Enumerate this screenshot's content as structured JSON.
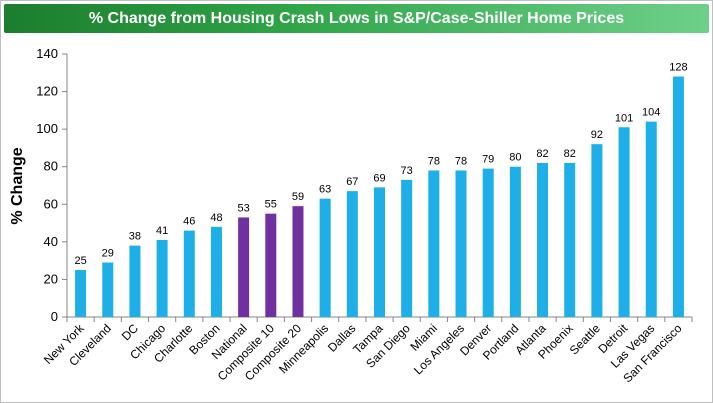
{
  "chart_data": {
    "type": "bar",
    "title": "% Change from Housing Crash Lows in S&P/Case-Shiller Home Prices",
    "ylabel": "% Change",
    "xlabel": "",
    "ylim": [
      0,
      140
    ],
    "yticks": [
      0,
      20,
      40,
      60,
      80,
      100,
      120,
      140
    ],
    "grid": false,
    "categories": [
      "New York",
      "Cleveland",
      "DC",
      "Chicago",
      "Charlotte",
      "Boston",
      "National",
      "Composite 10",
      "Composite 20",
      "Minneapolis",
      "Dallas",
      "Tampa",
      "San Diego",
      "Miami",
      "Los Angeles",
      "Denver",
      "Portland",
      "Atlanta",
      "Phoenix",
      "Seattle",
      "Detroit",
      "Las Vegas",
      "San Francisco"
    ],
    "values": [
      25,
      29,
      38,
      41,
      46,
      48,
      53,
      55,
      59,
      63,
      67,
      69,
      73,
      78,
      78,
      79,
      80,
      82,
      82,
      92,
      101,
      104,
      128
    ],
    "colors": {
      "city": "#1eaee8",
      "national": "#7030a0",
      "title_bar": "#2ea447",
      "title_text": "#ffffff"
    },
    "highlight_categories": [
      "National",
      "Composite 10",
      "Composite 20"
    ]
  }
}
